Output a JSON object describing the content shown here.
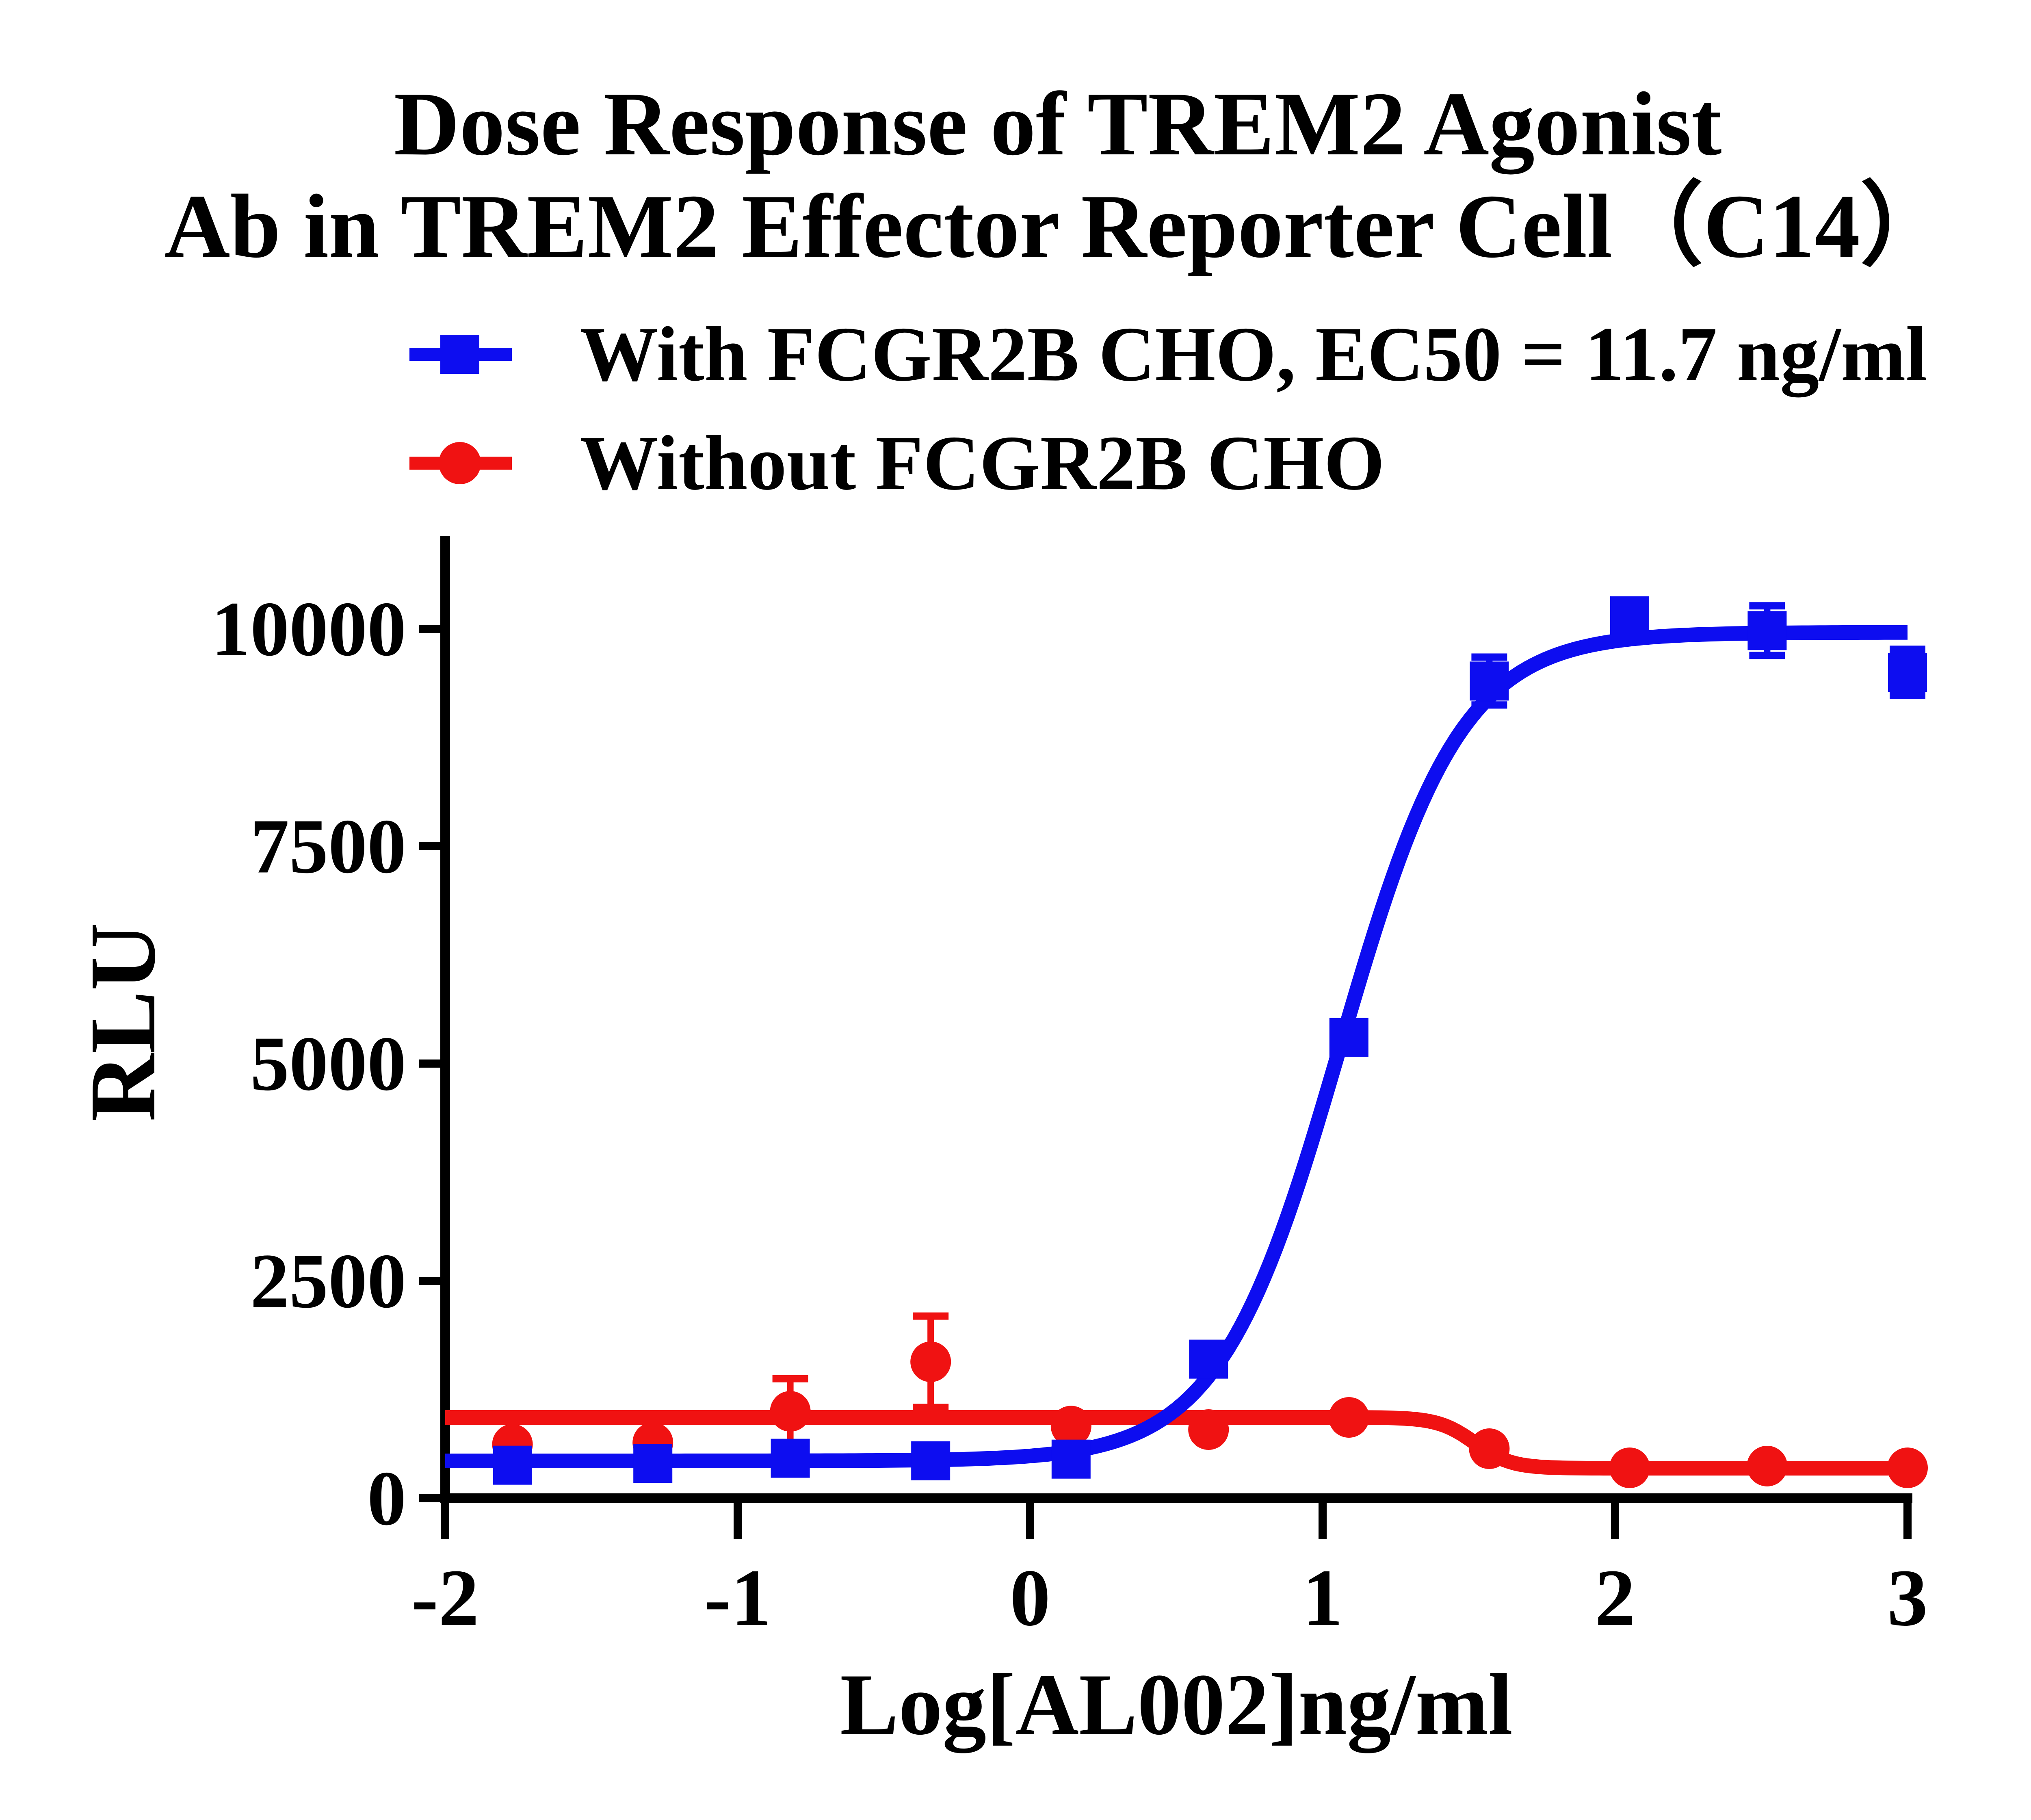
{
  "title": {
    "line1": "Dose Response of TREM2 Agonist",
    "line2": "Ab in TREM2 Effector Reporter Cell（C14）"
  },
  "legend": [
    {
      "label": "With FCGR2B CHO, EC50 = 11.7 ng/ml",
      "color": "#0d0df0",
      "marker": "square"
    },
    {
      "label": "Without FCGR2B CHO",
      "color": "#f01212",
      "marker": "circle"
    }
  ],
  "ec50_value": "11.7 ng/ml",
  "colors": {
    "blue_series": "#0d0df0",
    "red_series": "#f01212",
    "axis": "#000000",
    "background": "#ffffff"
  },
  "chart_data": {
    "type": "scatter",
    "subtype": "dose-response curves with error bars and 4PL fits",
    "title": "Dose Response of TREM2 Agonist Ab in TREM2 Effector Reporter Cell（C14）",
    "xlabel": "Log[AL002]ng/ml",
    "ylabel": "RLU",
    "xlim": [
      -2,
      3
    ],
    "ylim": [
      0,
      11000
    ],
    "x_ticks": [
      -2,
      -1,
      0,
      1,
      2,
      3
    ],
    "y_ticks": [
      0,
      2500,
      5000,
      7500,
      10000
    ],
    "grid": false,
    "legend_position": "top-left above plot",
    "series": [
      {
        "name": "With FCGR2B CHO, EC50 = 11.7 ng/ml",
        "color": "#0d0df0",
        "marker": "square",
        "x": [
          -1.77,
          -1.29,
          -0.82,
          -0.34,
          0.14,
          0.61,
          1.09,
          1.57,
          2.05,
          2.52,
          3.0
        ],
        "y": [
          380,
          400,
          460,
          430,
          450,
          1600,
          5300,
          9400,
          10150,
          9980,
          9500
        ],
        "yerr": [
          0,
          0,
          0,
          0,
          0,
          0,
          0,
          280,
          0,
          290,
          270
        ],
        "fit": {
          "model": "4PL",
          "bottom": 430,
          "top": 9960,
          "logEC50": 1.06,
          "hill": 2.1
        }
      },
      {
        "name": "Without FCGR2B CHO",
        "color": "#f01212",
        "marker": "circle",
        "x": [
          -1.77,
          -1.29,
          -0.82,
          -0.34,
          0.14,
          0.61,
          1.09,
          1.57,
          2.05,
          2.52,
          3.0
        ],
        "y": [
          620,
          640,
          1000,
          1570,
          830,
          790,
          930,
          570,
          350,
          370,
          350
        ],
        "yerr": [
          0,
          0,
          380,
          530,
          0,
          0,
          0,
          0,
          0,
          0,
          0
        ],
        "fit": {
          "model": "4PL",
          "bottom": 345,
          "top": 930,
          "logEC50": 1.52,
          "hill": -7
        }
      }
    ]
  }
}
